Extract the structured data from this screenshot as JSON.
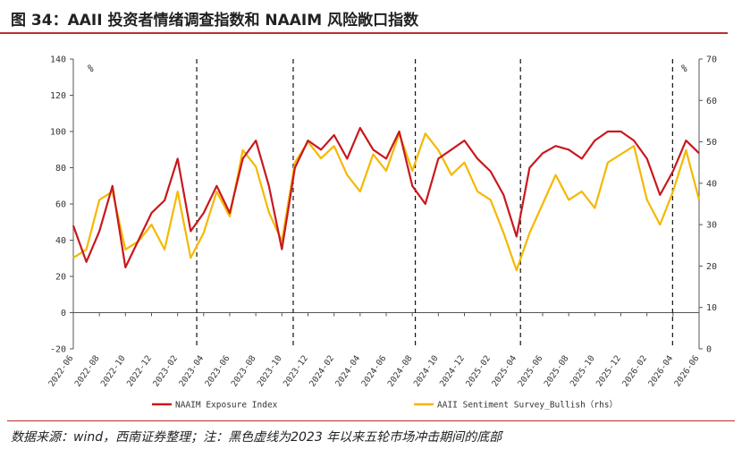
{
  "title": "图 34：AAII 投资者情绪调查指数和 NAAIM 风险敞口指数",
  "source": "数据来源：wind，西南证券整理；注：黑色虚线为2023 年以来五轮市场冲击期间的底部",
  "colors": {
    "naaim": "#c8181e",
    "aaii": "#f5b800",
    "accent": "#b8302f"
  },
  "chart_data": {
    "type": "line",
    "y_left": {
      "unit": "%",
      "min": -20,
      "max": 140,
      "ticks": [
        -20,
        0,
        20,
        40,
        60,
        80,
        100,
        120,
        140
      ]
    },
    "y_right": {
      "unit": "%",
      "min": 0,
      "max": 70,
      "ticks": [
        0,
        10,
        20,
        30,
        40,
        50,
        60,
        70
      ]
    },
    "x_range": [
      "2022-06",
      "2026-06"
    ],
    "x_ticks": [
      "2022-06",
      "2022-08",
      "2022-10",
      "2022-12",
      "2023-02",
      "2023-04",
      "2023-06",
      "2023-08",
      "2023-10",
      "2023-12",
      "2024-02",
      "2024-04",
      "2024-06",
      "2024-08",
      "2024-10",
      "2024-12",
      "2025-02",
      "2025-04",
      "2025-06",
      "2025-08",
      "2025-10",
      "2025-12",
      "2026-02",
      "2026-04",
      "2026-06"
    ],
    "dashed_markers": [
      "2023-03-15",
      "2023-10-27",
      "2024-08-08",
      "2025-04-10",
      "2026-03-30"
    ],
    "grid": false,
    "legend_position": "bottom",
    "series": [
      {
        "name": "NAAIM Exposure Index",
        "axis": "left",
        "x": [
          "2022-06",
          "2022-07",
          "2022-08",
          "2022-09",
          "2022-10",
          "2022-11",
          "2022-12",
          "2023-01",
          "2023-02",
          "2023-03",
          "2023-04",
          "2023-05",
          "2023-06",
          "2023-07",
          "2023-08",
          "2023-09",
          "2023-10",
          "2023-11",
          "2023-12",
          "2024-01",
          "2024-02",
          "2024-03",
          "2024-04",
          "2024-05",
          "2024-06",
          "2024-07",
          "2024-08",
          "2024-09",
          "2024-10",
          "2024-11",
          "2024-12",
          "2025-01",
          "2025-02",
          "2025-03",
          "2025-04",
          "2025-05",
          "2025-06",
          "2025-07",
          "2025-08",
          "2025-09",
          "2025-10",
          "2025-11",
          "2025-12",
          "2026-01",
          "2026-02",
          "2026-03",
          "2026-04",
          "2026-05",
          "2026-06"
        ],
        "y": [
          48,
          28,
          45,
          70,
          25,
          40,
          55,
          62,
          85,
          45,
          55,
          70,
          55,
          85,
          95,
          70,
          35,
          80,
          95,
          90,
          98,
          85,
          102,
          90,
          85,
          100,
          70,
          60,
          85,
          90,
          95,
          85,
          78,
          65,
          42,
          80,
          88,
          92,
          90,
          85,
          95,
          100,
          100,
          95,
          85,
          65,
          78,
          95,
          88
        ]
      },
      {
        "name": "AAII Sentiment Survey_Bullish（rhs）",
        "axis": "right",
        "x": [
          "2022-06",
          "2022-07",
          "2022-08",
          "2022-09",
          "2022-10",
          "2022-11",
          "2022-12",
          "2023-01",
          "2023-02",
          "2023-03",
          "2023-04",
          "2023-05",
          "2023-06",
          "2023-07",
          "2023-08",
          "2023-09",
          "2023-10",
          "2023-11",
          "2023-12",
          "2024-01",
          "2024-02",
          "2024-03",
          "2024-04",
          "2024-05",
          "2024-06",
          "2024-07",
          "2024-08",
          "2024-09",
          "2024-10",
          "2024-11",
          "2024-12",
          "2025-01",
          "2025-02",
          "2025-03",
          "2025-04",
          "2025-05",
          "2025-06",
          "2025-07",
          "2025-08",
          "2025-09",
          "2025-10",
          "2025-11",
          "2025-12",
          "2026-01",
          "2026-02",
          "2026-03",
          "2026-04",
          "2026-05",
          "2026-06"
        ],
        "y": [
          22,
          24,
          36,
          38,
          24,
          26,
          30,
          24,
          38,
          22,
          28,
          38,
          32,
          48,
          44,
          33,
          26,
          45,
          50,
          46,
          49,
          42,
          38,
          47,
          43,
          52,
          43,
          52,
          48,
          42,
          45,
          38,
          36,
          28,
          19,
          28,
          35,
          42,
          36,
          38,
          34,
          45,
          47,
          49,
          36,
          30,
          38,
          48,
          36
        ]
      }
    ]
  }
}
